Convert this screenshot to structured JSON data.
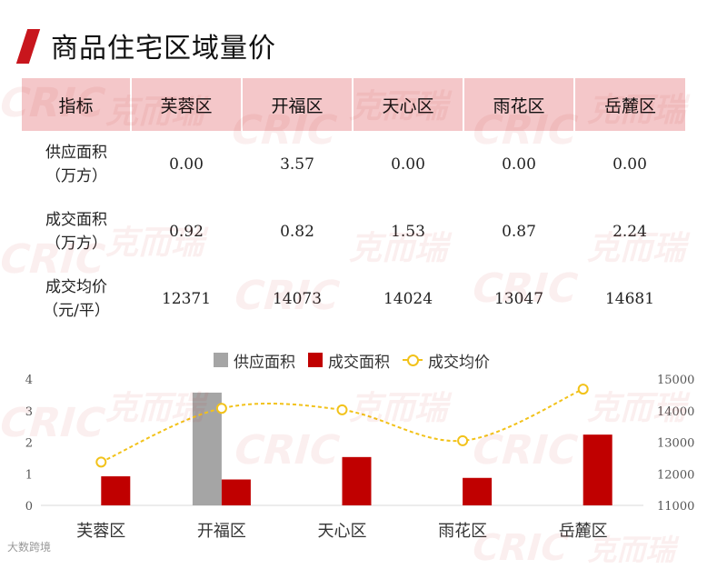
{
  "header": {
    "title": "商品住宅区域量价"
  },
  "table": {
    "corner_label": "指标",
    "columns": [
      "芙蓉区",
      "开福区",
      "天心区",
      "雨花区",
      "岳麓区"
    ],
    "rows": [
      {
        "label_line1": "供应面积",
        "label_line2": "（万方）",
        "values": [
          "0.00",
          "3.57",
          "0.00",
          "0.00",
          "0.00"
        ]
      },
      {
        "label_line1": "成交面积",
        "label_line2": "（万方）",
        "values": [
          "0.92",
          "0.82",
          "1.53",
          "0.87",
          "2.24"
        ]
      },
      {
        "label_line1": "成交均价",
        "label_line2": "（元/平）",
        "values": [
          "12371",
          "14073",
          "14024",
          "13047",
          "14681"
        ]
      }
    ]
  },
  "colors": {
    "supply": "#a5a5a5",
    "deal": "#c00000",
    "price": "#f2c21a",
    "header_bg": "#f4c7c9",
    "accent": "#c8161d"
  },
  "watermark": {
    "logo": "CRIC",
    "text": "克而瑞"
  },
  "footer": {
    "logo_text": "大数跨境"
  },
  "chart_data": {
    "type": "bar",
    "categories": [
      "芙蓉区",
      "开福区",
      "天心区",
      "雨花区",
      "岳麓区"
    ],
    "series": [
      {
        "name": "供应面积",
        "type": "bar",
        "axis": "left",
        "values": [
          0.0,
          3.57,
          0.0,
          0.0,
          0.0
        ]
      },
      {
        "name": "成交面积",
        "type": "bar",
        "axis": "left",
        "values": [
          0.92,
          0.82,
          1.53,
          0.87,
          2.24
        ]
      },
      {
        "name": "成交均价",
        "type": "line",
        "axis": "right",
        "values": [
          12371,
          14073,
          14024,
          13047,
          14681
        ]
      }
    ],
    "y_left": {
      "min": 0,
      "max": 4,
      "ticks": [
        "0",
        "1",
        "2",
        "3",
        "4"
      ]
    },
    "y_right": {
      "min": 11000,
      "max": 15000,
      "ticks": [
        "11000",
        "12000",
        "13000",
        "14000",
        "15000"
      ]
    },
    "legend_position": "top",
    "grid": false
  }
}
